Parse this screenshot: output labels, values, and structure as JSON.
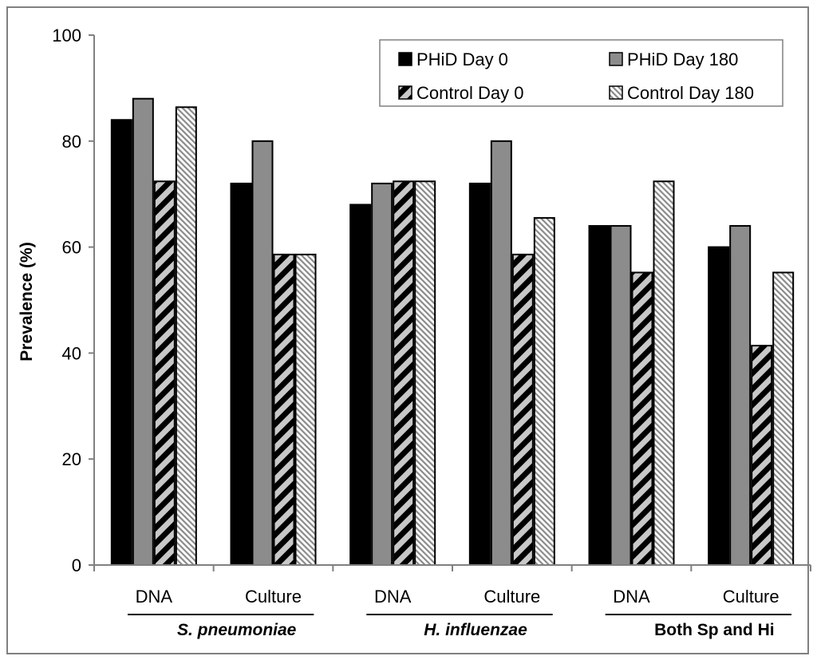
{
  "chart_data": {
    "type": "bar",
    "title": "",
    "xlabel": "",
    "ylabel": "Prevalence (%)",
    "ylim": [
      0,
      100
    ],
    "yticks": [
      0,
      20,
      40,
      60,
      80,
      100
    ],
    "grid": false,
    "legend_position": "top-right",
    "categories": [
      "DNA",
      "Culture",
      "DNA",
      "Culture",
      "DNA",
      "Culture"
    ],
    "groups": [
      {
        "label": "S. pneumoniae",
        "italic": true,
        "categories": [
          0,
          1
        ]
      },
      {
        "label": "H. influenzae",
        "italic": true,
        "categories": [
          2,
          3
        ]
      },
      {
        "label": "Both Sp and Hi",
        "italic": false,
        "categories": [
          4,
          5
        ]
      }
    ],
    "series": [
      {
        "name": "PHiD Day 0",
        "fill": "#000000",
        "pattern": "solid",
        "values": [
          84,
          72,
          68,
          72,
          64,
          60
        ]
      },
      {
        "name": "PHiD Day 180",
        "fill": "#8c8c8c",
        "pattern": "solid",
        "values": [
          88,
          80,
          72,
          80,
          64,
          64
        ]
      },
      {
        "name": "Control Day 0",
        "fill": "#000000",
        "pattern": "wide-diagonal",
        "values": [
          72.4,
          58.6,
          72.4,
          58.6,
          55.2,
          41.4
        ]
      },
      {
        "name": "Control Day 180",
        "fill": "#000000",
        "pattern": "fine-diagonal",
        "values": [
          86.4,
          58.6,
          72.4,
          65.5,
          72.4,
          55.2
        ]
      }
    ]
  }
}
